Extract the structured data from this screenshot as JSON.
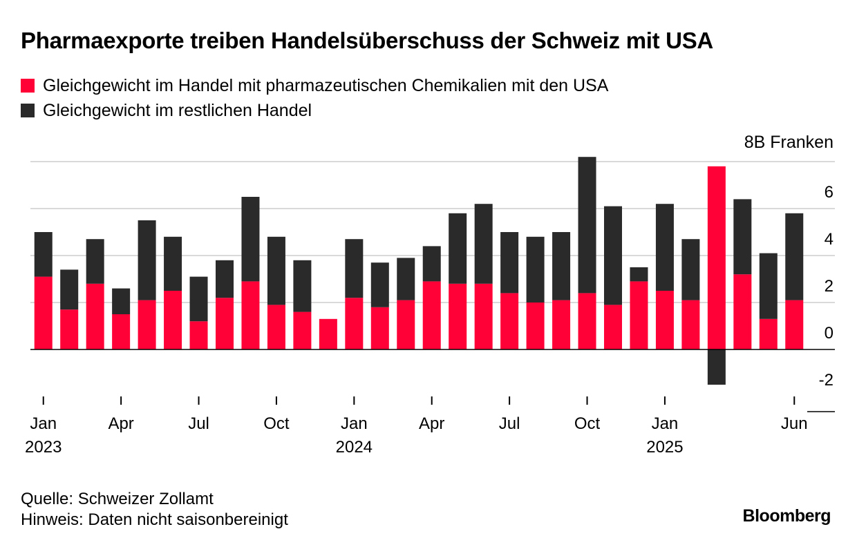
{
  "title": "Pharmaexporte treiben Handelsüberschuss der Schweiz mit USA",
  "legend": [
    {
      "label": "Gleichgewicht im Handel mit pharmazeutischen Chemikalien mit den USA",
      "color": "#ff0037"
    },
    {
      "label": "Gleichgewicht im restlichen Handel",
      "color": "#2a2a2a"
    }
  ],
  "unit_label": "8B Franken",
  "source": "Quelle: Schweizer Zollamt",
  "note": "Hinweis: Daten nicht saisonbereinigt",
  "brand": "Bloomberg",
  "chart_data": {
    "type": "bar",
    "stacked": true,
    "ylim": [
      -2.6,
      8
    ],
    "yticks": [
      -2,
      0,
      2,
      4,
      6
    ],
    "grid": true,
    "categories": [
      "2023-01",
      "2023-02",
      "2023-03",
      "2023-04",
      "2023-05",
      "2023-06",
      "2023-07",
      "2023-08",
      "2023-09",
      "2023-10",
      "2023-11",
      "2023-12",
      "2024-01",
      "2024-02",
      "2024-03",
      "2024-04",
      "2024-05",
      "2024-06",
      "2024-07",
      "2024-08",
      "2024-09",
      "2024-10",
      "2024-11",
      "2024-12",
      "2025-01",
      "2025-02",
      "2025-03",
      "2025-04",
      "2025-05",
      "2025-06"
    ],
    "x_tick_labels": [
      {
        "index": 0,
        "month": "Jan",
        "year": "2023"
      },
      {
        "index": 3,
        "month": "Apr",
        "year": ""
      },
      {
        "index": 6,
        "month": "Jul",
        "year": ""
      },
      {
        "index": 9,
        "month": "Oct",
        "year": ""
      },
      {
        "index": 12,
        "month": "Jan",
        "year": "2024"
      },
      {
        "index": 15,
        "month": "Apr",
        "year": ""
      },
      {
        "index": 18,
        "month": "Jul",
        "year": ""
      },
      {
        "index": 21,
        "month": "Oct",
        "year": ""
      },
      {
        "index": 24,
        "month": "Jan",
        "year": "2025"
      },
      {
        "index": 29,
        "month": "Jun",
        "year": ""
      }
    ],
    "series": [
      {
        "name": "Gleichgewicht im Handel mit pharmazeutischen Chemikalien mit den USA",
        "color": "#ff0037",
        "values": [
          3.1,
          1.7,
          2.8,
          1.5,
          2.1,
          2.5,
          1.2,
          2.2,
          2.9,
          1.9,
          1.6,
          1.3,
          2.2,
          1.8,
          2.1,
          2.9,
          2.8,
          2.8,
          2.4,
          2.0,
          2.1,
          2.4,
          1.9,
          2.9,
          2.5,
          2.1,
          7.8,
          3.2,
          1.3,
          2.1
        ]
      },
      {
        "name": "Gleichgewicht im restlichen Handel",
        "color": "#2a2a2a",
        "values": [
          1.9,
          1.7,
          1.9,
          1.1,
          3.4,
          2.3,
          1.9,
          1.6,
          3.6,
          2.9,
          2.2,
          0.0,
          2.5,
          1.9,
          1.8,
          1.5,
          3.0,
          3.4,
          2.6,
          2.8,
          2.9,
          5.8,
          4.2,
          0.6,
          3.7,
          2.6,
          -1.5,
          3.2,
          2.8,
          3.7
        ]
      }
    ]
  }
}
